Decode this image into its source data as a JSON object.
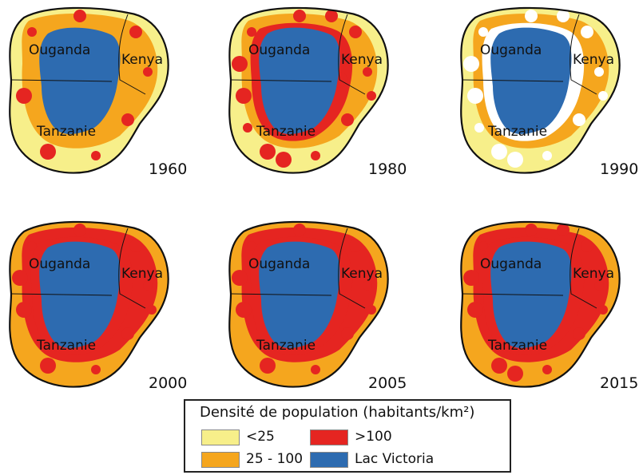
{
  "colors": {
    "low": "#f7ef8a",
    "mid": "#f5a61e",
    "high": "#e52521",
    "lake": "#2d6bb0",
    "outline": "#111111",
    "missing": "#ffffff"
  },
  "panels": [
    {
      "year": "1960",
      "ouganda": "Ouganda",
      "kenya": "Kenya",
      "tanzanie": "Tanzanie",
      "base": "low",
      "ring": "mid",
      "inner": "mid",
      "spots": "high",
      "spotsCount": 8
    },
    {
      "year": "1980",
      "ouganda": "Ouganda",
      "kenya": "Kenya",
      "tanzanie": "Tanzanie",
      "base": "low",
      "ring": "mid",
      "inner": "high",
      "spots": "high",
      "spotsCount": 16
    },
    {
      "year": "1990",
      "ouganda": "Ouganda",
      "kenya": "Kenya",
      "tanzanie": "Tanzanie",
      "base": "low",
      "ring": "mid",
      "inner": "missing",
      "spots": "missing",
      "spotsCount": 14
    },
    {
      "year": "2000",
      "ouganda": "Ouganda",
      "kenya": "Kenya",
      "tanzanie": "Tanzanie",
      "base": "mid",
      "ring": "high",
      "inner": "high",
      "spots": "high",
      "spotsCount": 10
    },
    {
      "year": "2005",
      "ouganda": "Ouganda",
      "kenya": "Kenya",
      "tanzanie": "Tanzanie",
      "base": "mid",
      "ring": "high",
      "inner": "high",
      "spots": "high",
      "spotsCount": 10
    },
    {
      "year": "2015",
      "ouganda": "Ouganda",
      "kenya": "Kenya",
      "tanzanie": "Tanzanie",
      "base": "mid",
      "ring": "high",
      "inner": "high",
      "spots": "high",
      "spotsCount": 12
    }
  ],
  "legend": {
    "title": "Densité de population (habitants/km²)",
    "items": [
      {
        "label": "<25",
        "color": "#f7ef8a"
      },
      {
        "label": ">100",
        "color": "#e52521"
      },
      {
        "label": "25 - 100",
        "color": "#f5a61e"
      },
      {
        "label": "Lac Victoria",
        "color": "#2d6bb0"
      }
    ]
  }
}
